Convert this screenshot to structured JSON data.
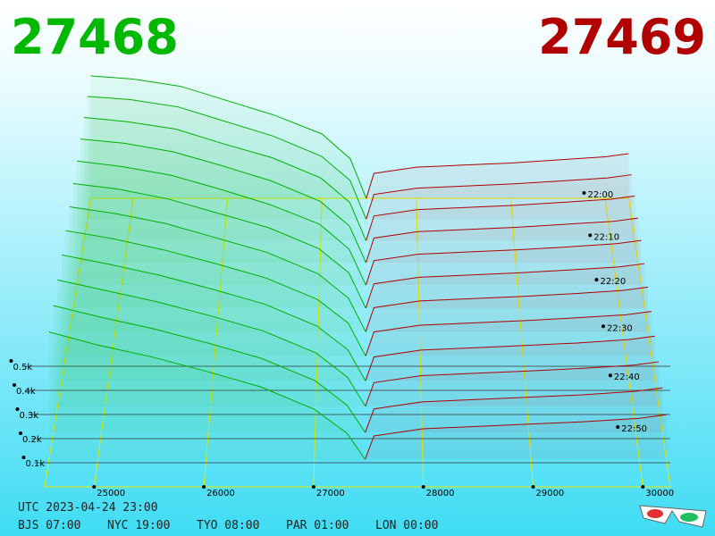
{
  "chart_data": {
    "type": "depth3d",
    "bid_price": 27468,
    "ask_price": 27469,
    "xlim": [
      24550,
      30250
    ],
    "xticks": [
      25000,
      26000,
      27000,
      28000,
      29000,
      30000
    ],
    "ylim": [
      0,
      600
    ],
    "yticks": [
      {
        "value": 100,
        "label": "0.1k"
      },
      {
        "value": 200,
        "label": "0.2k"
      },
      {
        "value": 300,
        "label": "0.3k"
      },
      {
        "value": 400,
        "label": "0.4k"
      },
      {
        "value": 500,
        "label": "0.5k"
      }
    ],
    "timelim": [
      "22:00",
      "23:00"
    ],
    "time_ticks": [
      "22:00",
      "22:10",
      "22:20",
      "22:30",
      "22:40",
      "22:50"
    ],
    "times": [
      "22:00",
      "22:05",
      "22:10",
      "22:15",
      "22:20",
      "22:25",
      "22:30",
      "22:35",
      "22:40",
      "22:45",
      "22:50",
      "22:55"
    ],
    "bids": {
      "color": "#00b000",
      "x": [
        24550,
        25000,
        25500,
        26000,
        26500,
        27000,
        27300,
        27468
      ],
      "series": [
        {
          "values": [
            590,
            575,
            540,
            470,
            400,
            310,
            190,
            0
          ]
        },
        {
          "values": [
            585,
            570,
            535,
            465,
            395,
            300,
            185,
            0
          ]
        },
        {
          "values": [
            580,
            560,
            525,
            455,
            390,
            295,
            180,
            0
          ]
        },
        {
          "values": [
            575,
            555,
            515,
            450,
            380,
            285,
            170,
            0
          ]
        },
        {
          "values": [
            570,
            545,
            505,
            440,
            370,
            280,
            165,
            0
          ]
        },
        {
          "values": [
            565,
            540,
            495,
            430,
            365,
            270,
            160,
            0
          ]
        },
        {
          "values": [
            560,
            530,
            485,
            420,
            355,
            260,
            150,
            0
          ]
        },
        {
          "values": [
            555,
            520,
            470,
            410,
            345,
            250,
            145,
            0
          ]
        },
        {
          "values": [
            550,
            510,
            460,
            400,
            335,
            240,
            135,
            0
          ]
        },
        {
          "values": [
            545,
            500,
            450,
            390,
            325,
            230,
            125,
            0
          ]
        },
        {
          "values": [
            540,
            490,
            440,
            380,
            315,
            220,
            115,
            0
          ]
        },
        {
          "values": [
            535,
            480,
            430,
            370,
            305,
            210,
            110,
            0
          ]
        }
      ]
    },
    "asks": {
      "color": "#b00000",
      "x": [
        27469,
        27550,
        28000,
        28500,
        29000,
        29500,
        30000,
        30250
      ],
      "series": [
        {
          "values": [
            0,
            120,
            150,
            160,
            170,
            185,
            200,
            215
          ]
        },
        {
          "values": [
            0,
            118,
            148,
            158,
            168,
            182,
            197,
            212
          ]
        },
        {
          "values": [
            0,
            116,
            146,
            156,
            166,
            180,
            195,
            210
          ]
        },
        {
          "values": [
            0,
            114,
            144,
            154,
            164,
            178,
            192,
            207
          ]
        },
        {
          "values": [
            0,
            112,
            142,
            152,
            162,
            175,
            190,
            205
          ]
        },
        {
          "values": [
            0,
            110,
            140,
            150,
            160,
            173,
            187,
            202
          ]
        },
        {
          "values": [
            0,
            108,
            138,
            148,
            158,
            170,
            185,
            200
          ]
        },
        {
          "values": [
            0,
            106,
            136,
            146,
            156,
            168,
            182,
            197
          ]
        },
        {
          "values": [
            0,
            104,
            134,
            144,
            154,
            165,
            180,
            195
          ]
        },
        {
          "values": [
            0,
            102,
            132,
            142,
            152,
            163,
            177,
            192
          ]
        },
        {
          "values": [
            0,
            100,
            130,
            140,
            150,
            160,
            175,
            190
          ]
        },
        {
          "values": [
            0,
            98,
            128,
            138,
            148,
            158,
            172,
            187
          ]
        }
      ]
    },
    "footer": {
      "utc": "UTC 2023-04-24 23:00",
      "zones": [
        "BJS 07:00",
        "NYC 19:00",
        "TYO 08:00",
        "PAR 01:00",
        "LON 00:00"
      ]
    }
  }
}
